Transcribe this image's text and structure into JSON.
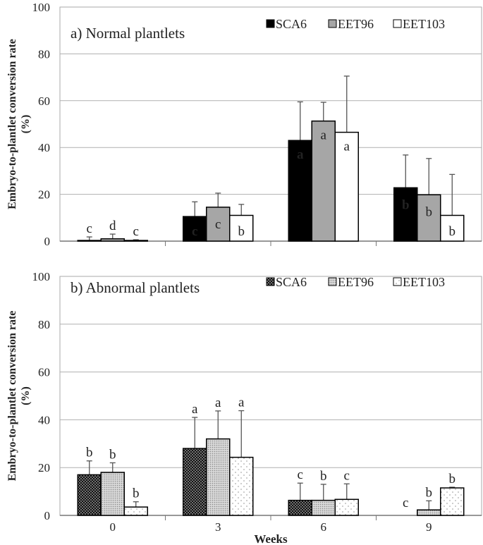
{
  "chart_data": [
    {
      "type": "bar",
      "title": "a) Normal plantlets",
      "xlabel": "",
      "ylabel": "Embryo-to-plantlet conversion rate (%)",
      "ylim": [
        0,
        100
      ],
      "yticks": [
        "0",
        "20",
        "40",
        "60",
        "80",
        "100"
      ],
      "categories": [
        "0",
        "3",
        "6",
        "9"
      ],
      "grid": true,
      "legend": "top-right",
      "series": [
        {
          "name": "SCA6",
          "color": "#000000",
          "values": [
            0.3,
            10.5,
            43,
            22.8
          ],
          "errors": [
            1.5,
            6.3,
            16.5,
            14
          ],
          "letters": [
            "c",
            "c",
            "a",
            "b"
          ]
        },
        {
          "name": "EET96",
          "color": "#a6a6a6",
          "values": [
            1,
            14.5,
            51.3,
            19.8
          ],
          "errors": [
            2,
            6,
            8,
            15.5
          ],
          "letters": [
            "d",
            "c",
            "a",
            "b"
          ]
        },
        {
          "name": "EET103",
          "color": "#ffffff",
          "values": [
            0.3,
            11,
            46.5,
            11
          ],
          "errors": [
            0.3,
            4.7,
            24,
            17.5
          ],
          "letters": [
            "c",
            "b",
            "a",
            "b"
          ]
        }
      ]
    },
    {
      "type": "bar",
      "title": "b) Abnormal plantlets",
      "xlabel": "Weeks",
      "ylabel": "Embryo-to-plantlet conversion rate (%)",
      "ylim": [
        0,
        100
      ],
      "yticks": [
        "0",
        "20",
        "40",
        "60",
        "80",
        "100"
      ],
      "categories": [
        "0",
        "3",
        "6",
        "9"
      ],
      "grid": true,
      "legend": "top-right",
      "series": [
        {
          "name": "SCA6",
          "color": "#111111",
          "values": [
            17,
            28,
            6.3,
            0
          ],
          "errors": [
            5.8,
            13,
            7.2,
            0
          ],
          "letters": [
            "b",
            "a",
            "c",
            "c"
          ]
        },
        {
          "name": "EET96",
          "color": "#bfbfbf",
          "values": [
            18,
            32,
            6.3,
            2.3
          ],
          "errors": [
            4,
            11.7,
            6.7,
            3.8
          ],
          "letters": [
            "b",
            "a",
            "b",
            "b"
          ]
        },
        {
          "name": "EET103",
          "color": "#ffffff",
          "values": [
            3.5,
            24.3,
            6.7,
            11.5
          ],
          "errors": [
            2.2,
            19.5,
            6.5,
            0.3
          ],
          "letters": [
            "b",
            "a",
            "c",
            "b"
          ]
        }
      ]
    }
  ]
}
